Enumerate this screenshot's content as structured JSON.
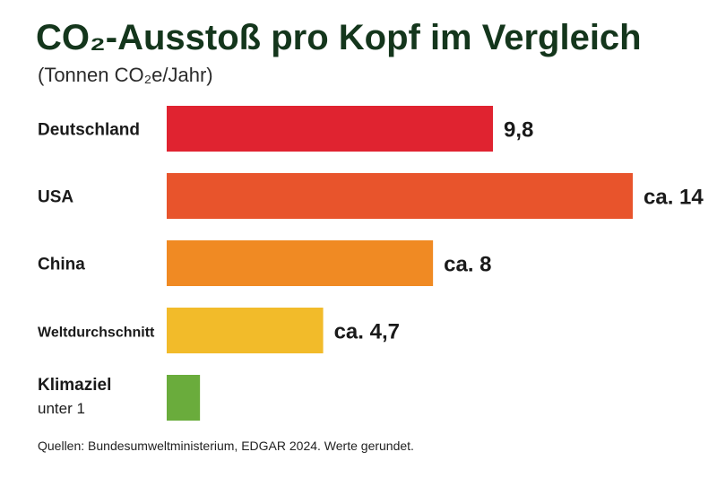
{
  "chart_data": {
    "type": "bar",
    "orientation": "horizontal",
    "title": "CO₂-Ausstoß pro Kopf im Vergleich",
    "subtitle": "(Tonnen CO₂e/Jahr)",
    "categories": [
      {
        "label": "Deutschland",
        "sublabel": ""
      },
      {
        "label": "USA",
        "sublabel": ""
      },
      {
        "label": "China",
        "sublabel": ""
      },
      {
        "label": "Weltdurchschnitt",
        "sublabel": ""
      },
      {
        "label": "Klimaziel",
        "sublabel": "unter 1"
      }
    ],
    "values": [
      9.8,
      14,
      8,
      4.7,
      1
    ],
    "value_labels": [
      "9,8",
      "ca. 14",
      "ca. 8",
      "ca. 4,7",
      ""
    ],
    "colors": [
      "#e02330",
      "#e8542c",
      "#f08a23",
      "#f2bb2a",
      "#6aac3c"
    ],
    "xlabel": "",
    "ylabel": "",
    "xlim": [
      0,
      14
    ],
    "grid": false,
    "legend": "none"
  },
  "source": "Quellen: Bundesumweltministerium, EDGAR 2024. Werte gerundet."
}
